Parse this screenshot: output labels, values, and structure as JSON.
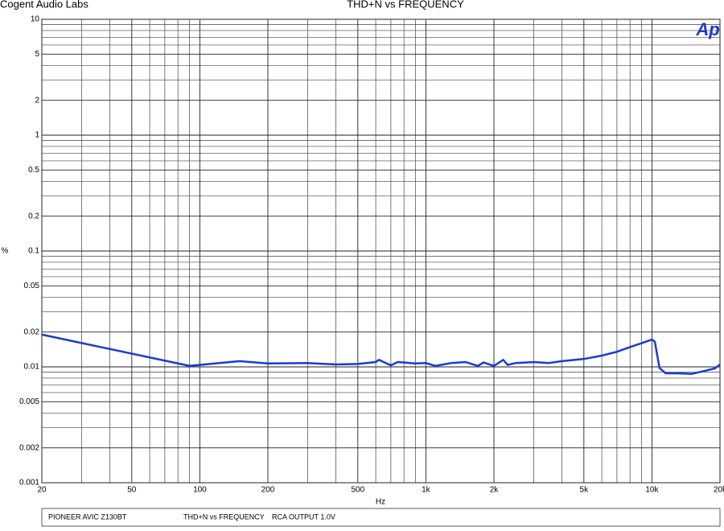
{
  "chart_data": {
    "type": "line",
    "company": "Cogent Audio Labs",
    "title": "THD+N vs FREQUENCY",
    "logo": "Ap",
    "xlabel": "Hz",
    "ylabel": "%",
    "xscale": "log",
    "yscale": "log",
    "grid": true,
    "color": "#1a3ad6",
    "xlim": [
      20,
      20000
    ],
    "ylim": [
      0.001,
      10
    ],
    "xticks": [
      20,
      50,
      100,
      200,
      500,
      {
        "value": 1000,
        "label": "1k"
      },
      {
        "value": 2000,
        "label": "2k"
      },
      {
        "value": 5000,
        "label": "5k"
      },
      {
        "value": 10000,
        "label": "10k"
      },
      {
        "value": 20000,
        "label": "20k"
      }
    ],
    "x_minor_ticks": [
      30,
      40,
      60,
      70,
      80,
      90,
      300,
      400,
      600,
      700,
      800,
      900,
      3000,
      4000,
      6000,
      7000,
      8000,
      9000
    ],
    "yticks": [
      10,
      5,
      2,
      1,
      0.5,
      0.2,
      0.1,
      0.05,
      0.02,
      0.01,
      0.005,
      0.002,
      0.001
    ],
    "y_minor_ticks": [
      9,
      8,
      7,
      6,
      4,
      3,
      0.9,
      0.8,
      0.7,
      0.6,
      0.4,
      0.3,
      0.09,
      0.08,
      0.07,
      0.06,
      0.04,
      0.03,
      0.009,
      0.008,
      0.007,
      0.006,
      0.004,
      0.003
    ],
    "x": [
      20,
      90,
      150,
      200,
      300,
      400,
      500,
      600,
      620,
      700,
      750,
      900,
      1000,
      1100,
      1300,
      1500,
      1700,
      1800,
      2000,
      2200,
      2300,
      2500,
      3000,
      3500,
      4000,
      5000,
      6000,
      7000,
      8000,
      9000,
      10000,
      10300,
      10800,
      11500,
      13000,
      15000,
      17000,
      19000,
      20000
    ],
    "values": [
      0.019,
      0.0102,
      0.0112,
      0.0107,
      0.0108,
      0.0105,
      0.0106,
      0.011,
      0.0115,
      0.0103,
      0.011,
      0.0107,
      0.0108,
      0.0102,
      0.0108,
      0.011,
      0.0102,
      0.0109,
      0.0102,
      0.0115,
      0.0104,
      0.0108,
      0.011,
      0.0108,
      0.0112,
      0.0117,
      0.0125,
      0.0135,
      0.0148,
      0.016,
      0.0172,
      0.0165,
      0.0098,
      0.0088,
      0.0088,
      0.0087,
      0.0092,
      0.0097,
      0.0105
    ],
    "footer": {
      "device": "PIONEER AVIC Z130BT",
      "measurement": "THD+N vs FREQUENCY",
      "condition": "RCA OUTPUT  1.0V"
    }
  }
}
